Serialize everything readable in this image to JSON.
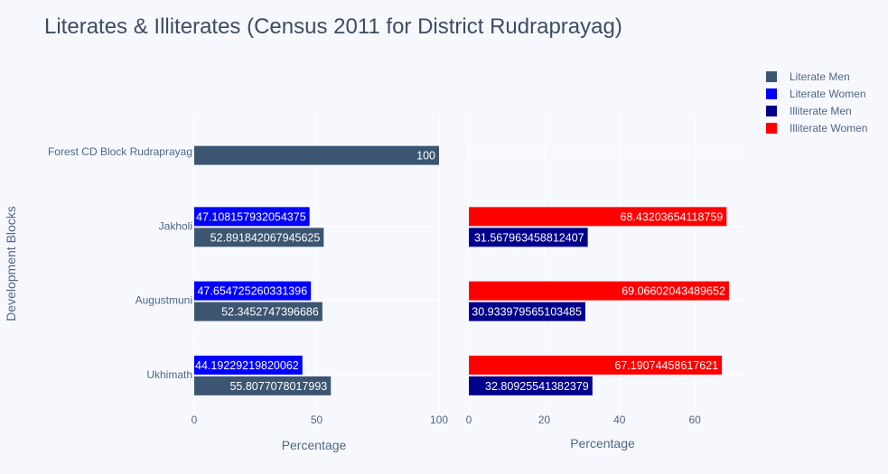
{
  "chart_data": {
    "type": "bar",
    "orientation": "horizontal",
    "title": "Literates & Illiterates (Census 2011 for District Rudraprayag)",
    "ylabel": "Development Blocks",
    "categories": [
      "Ukhimath",
      "Augustmuni",
      "Jakholi",
      "Forest CD Block Rudraprayag"
    ],
    "legend_position": "top-right",
    "panels": [
      {
        "xlabel": "Percentage",
        "xlim": [
          0,
          100
        ],
        "xticks": [
          0,
          50,
          100
        ],
        "series": [
          {
            "name": "Literate Men",
            "color": "#3c5570",
            "values": [
              55.8077078017993,
              52.3452747396686,
              52.89184206794562,
              100
            ],
            "labels": [
              "55.8077078017993",
              "52.3452747396686",
              "52.891842067945625",
              "100"
            ]
          },
          {
            "name": "Literate Women",
            "color": "#0000ff",
            "values": [
              44.19229219820062,
              47.6547252603314,
              47.108157932054375,
              null
            ],
            "labels": [
              "44.19229219820062",
              "47.654725260331396",
              "47.108157932054375",
              ""
            ]
          }
        ]
      },
      {
        "xlabel": "Percentage",
        "xlim": [
          0,
          73.4
        ],
        "xticks": [
          0,
          20,
          40,
          60
        ],
        "series": [
          {
            "name": "Illiterate Men",
            "color": "#00008b",
            "values": [
              32.80925541382379,
              30.933979565103485,
              31.567963458812407,
              null
            ],
            "labels": [
              "32.80925541382379",
              "30.933979565103485",
              "31.567963458812407",
              ""
            ]
          },
          {
            "name": "Illiterate Women",
            "color": "#ff0000",
            "values": [
              67.19074458617621,
              69.06602043489652,
              68.43203654118759,
              null
            ],
            "labels": [
              "67.19074458617621",
              "69.06602043489652",
              "68.43203654118759",
              ""
            ]
          }
        ]
      }
    ],
    "legend": [
      {
        "name": "Literate Men",
        "color": "#3c5570"
      },
      {
        "name": "Literate Women",
        "color": "#0000ff"
      },
      {
        "name": "Illiterate Men",
        "color": "#00008b"
      },
      {
        "name": "Illiterate Women",
        "color": "#ff0000"
      }
    ]
  }
}
